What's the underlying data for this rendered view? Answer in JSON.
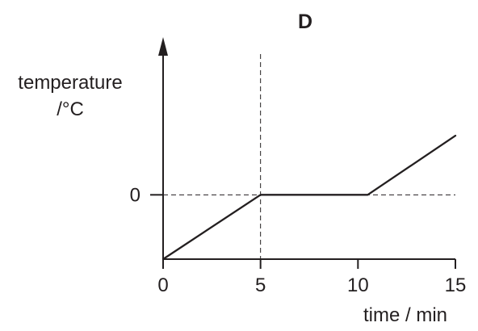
{
  "chart_data": {
    "type": "line",
    "title": "D",
    "ylabel_lines": [
      "temperature",
      "/°C"
    ],
    "xlabel": "time / min",
    "x_ticks": [
      "0",
      "5",
      "10",
      "15"
    ],
    "y_ticks": [
      "0"
    ],
    "xlim": [
      0,
      15
    ],
    "ylim": [
      -5,
      10
    ],
    "series": [
      {
        "points": [
          {
            "x": 0,
            "y": -5
          },
          {
            "x": 5,
            "y": 0
          },
          {
            "x": 10.5,
            "y": 0
          },
          {
            "x": 15,
            "y": 4.6
          }
        ]
      }
    ],
    "reference_lines": [
      {
        "orientation": "horizontal",
        "y": 0
      },
      {
        "orientation": "vertical",
        "x": 5
      }
    ],
    "colors": {
      "ink": "#231f20"
    }
  }
}
